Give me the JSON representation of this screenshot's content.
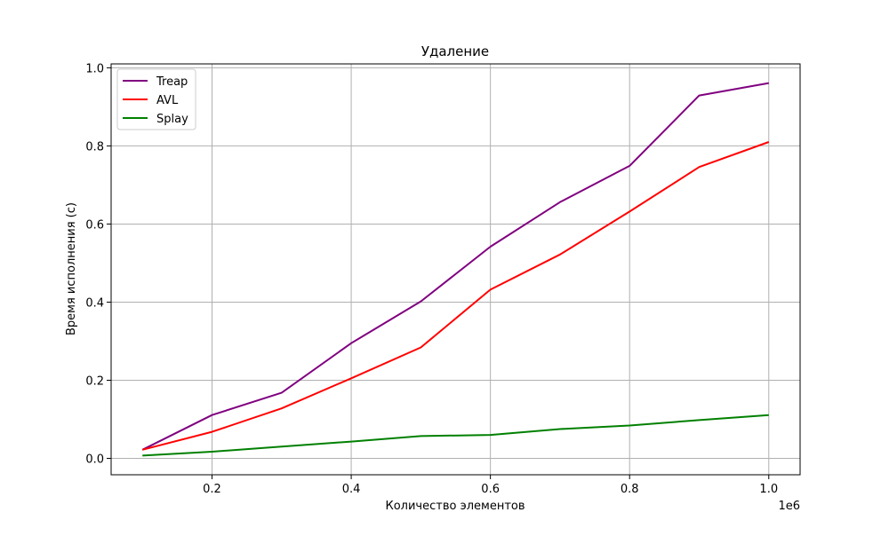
{
  "chart_data": {
    "type": "line",
    "title": "Удаление",
    "xlabel": "Количество элементов",
    "ylabel": "Время исполнения (с)",
    "x_offset_label": "1e6",
    "x": [
      100000,
      200000,
      300000,
      400000,
      500000,
      600000,
      700000,
      800000,
      900000,
      1000000
    ],
    "xlim": [
      55000,
      1045000
    ],
    "ylim": [
      -0.042,
      1.01
    ],
    "xticks": [
      200000,
      400000,
      600000,
      800000,
      1000000
    ],
    "xtick_labels": [
      "0.2",
      "0.4",
      "0.6",
      "0.8",
      "1.0"
    ],
    "yticks": [
      0.0,
      0.2,
      0.4,
      0.6,
      0.8,
      1.0
    ],
    "ytick_labels": [
      "0.0",
      "0.2",
      "0.4",
      "0.6",
      "0.8",
      "1.0"
    ],
    "grid": true,
    "legend_position": "upper-left",
    "series": [
      {
        "name": "Treap",
        "color": "#800080",
        "values": [
          0.022,
          0.111,
          0.168,
          0.295,
          0.402,
          0.542,
          0.656,
          0.749,
          0.929,
          0.961
        ]
      },
      {
        "name": "AVL",
        "color": "#ff0000",
        "values": [
          0.022,
          0.068,
          0.128,
          0.205,
          0.284,
          0.432,
          0.522,
          0.632,
          0.746,
          0.81
        ]
      },
      {
        "name": "Splay",
        "color": "#008000",
        "values": [
          0.007,
          0.017,
          0.03,
          0.043,
          0.057,
          0.06,
          0.075,
          0.084,
          0.098,
          0.111
        ]
      }
    ]
  }
}
